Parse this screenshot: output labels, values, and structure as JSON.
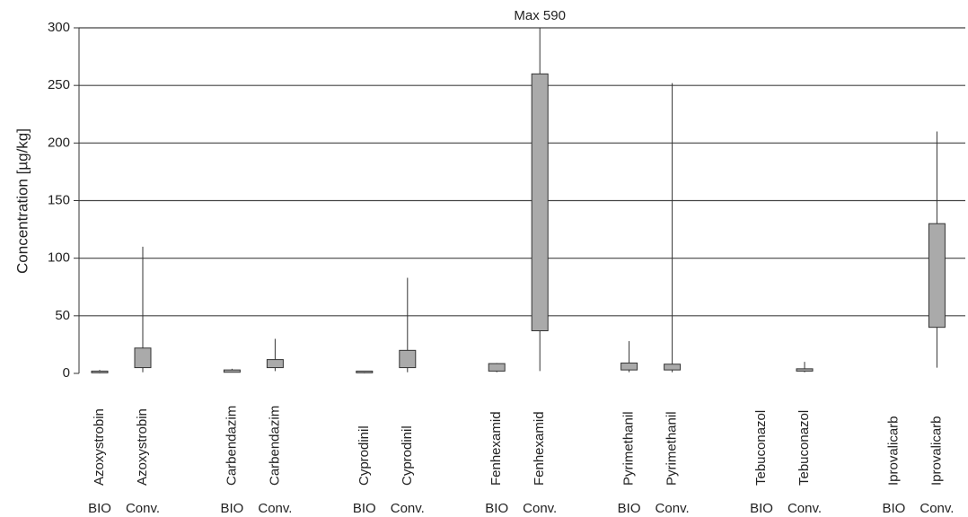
{
  "chart_data": {
    "type": "box",
    "y_label": "Concentration [µg/kg]",
    "annotation": "Max 590",
    "categories": [
      "Azoxystrobin",
      "Azoxystrobin",
      "Carbendazim",
      "Carbendazim",
      "Cyprodinil",
      "Cyprodinil",
      "Fenhexamid",
      "Fenhexamid",
      "Pyrimethanil",
      "Pyrimethanil",
      "Tebuconazol",
      "Tebuconazol",
      "Iprovalicarb",
      "Iprovalicarb"
    ],
    "groups": [
      "BIO",
      "Conv.",
      "BIO",
      "Conv.",
      "BIO",
      "Conv.",
      "BIO",
      "Conv.",
      "BIO",
      "Conv.",
      "BIO",
      "Conv.",
      "BIO",
      "Conv."
    ],
    "min": [
      0,
      1,
      1,
      2,
      0,
      1,
      1,
      2,
      1,
      1,
      null,
      1,
      null,
      5
    ],
    "q1": [
      0.5,
      5,
      1,
      5,
      0.5,
      5,
      2,
      37,
      3,
      3,
      null,
      2,
      null,
      40
    ],
    "q3": [
      2,
      22,
      3,
      12,
      2,
      20,
      8.5,
      260,
      9,
      8,
      null,
      4,
      null,
      130
    ],
    "max": [
      3,
      110,
      4,
      30,
      2,
      83,
      9,
      590,
      28,
      252,
      null,
      10,
      null,
      210
    ],
    "color": "#aaaaaa",
    "ylim": [
      0,
      300
    ],
    "yticks": [
      0,
      50,
      100,
      150,
      200,
      250,
      300
    ],
    "grid": true
  }
}
